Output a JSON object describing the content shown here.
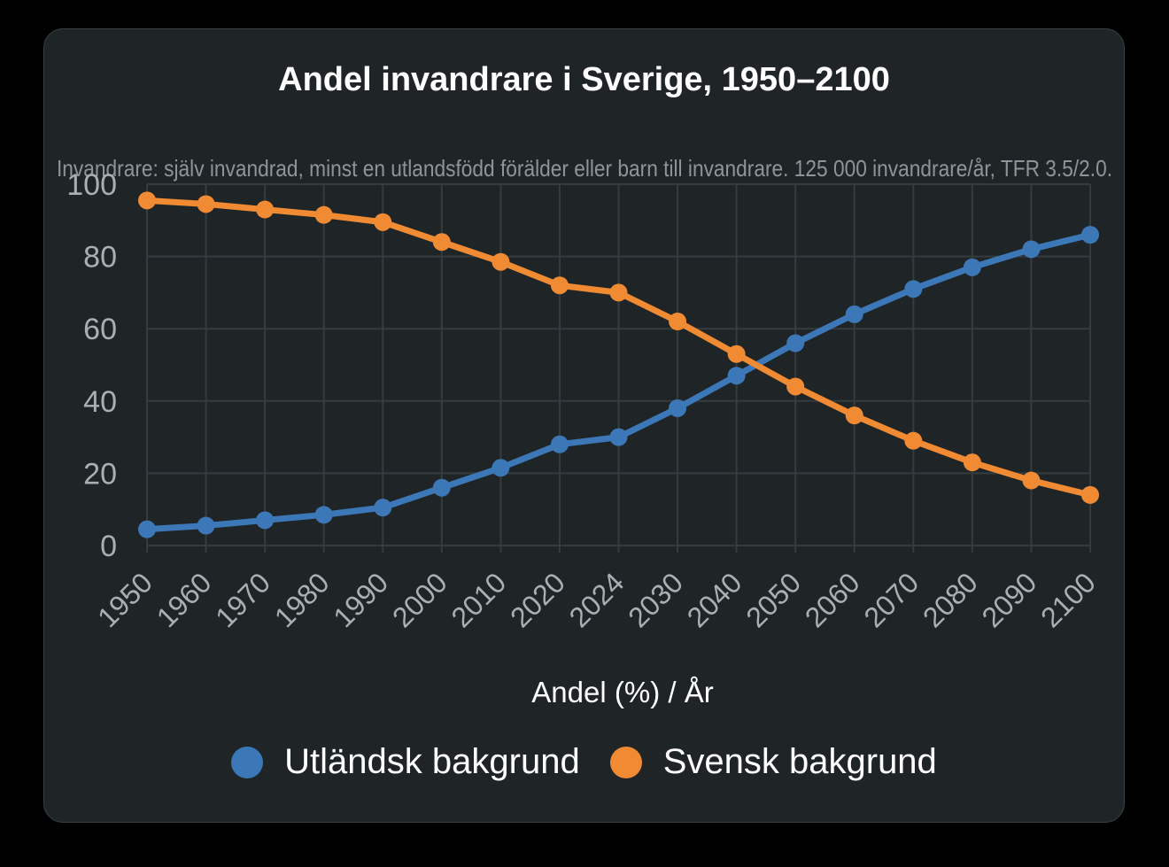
{
  "chart_data": {
    "type": "line",
    "title": "Andel invandrare i Sverige, 1950–2100",
    "subtitle": "Invandrare: själv invandrad, minst en utlandsfödd förälder eller barn till invandrare. 125 000 invandrare/år, TFR 3.5/2.0.",
    "xlabel": "Andel (%) / År",
    "ylabel": "",
    "categories": [
      "1950",
      "1960",
      "1970",
      "1980",
      "1990",
      "2000",
      "2010",
      "2020",
      "2024",
      "2030",
      "2040",
      "2050",
      "2060",
      "2070",
      "2080",
      "2090",
      "2100"
    ],
    "ylim": [
      0,
      100
    ],
    "yticks": [
      0,
      20,
      40,
      60,
      80,
      100
    ],
    "grid": true,
    "legend_position": "bottom",
    "series": [
      {
        "name": "Utländsk bakgrund",
        "color": "#3c78b8",
        "values": [
          4.5,
          5.5,
          7,
          8.5,
          10.5,
          16,
          21.5,
          28,
          30,
          38,
          47,
          56,
          64,
          71,
          77,
          82,
          86
        ]
      },
      {
        "name": "Svensk bakgrund",
        "color": "#f08a33",
        "values": [
          95.5,
          94.5,
          93,
          91.5,
          89.5,
          84,
          78.5,
          72,
          70,
          62,
          53,
          44,
          36,
          29,
          23,
          18,
          14
        ]
      }
    ]
  }
}
